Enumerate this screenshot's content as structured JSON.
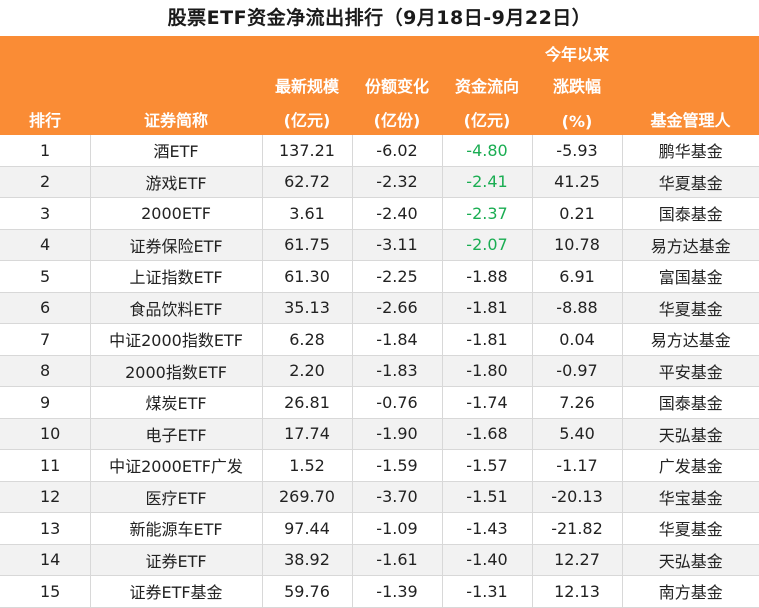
{
  "title": "股票ETF资金净流出排行（9月18日-9月22日）",
  "headers": {
    "rank": "排行",
    "name": "证券简称",
    "size_line1": "最新规模",
    "size_line2": "(亿元)",
    "share_line1": "份额变化",
    "share_line2": "(亿份)",
    "flow_line1": "资金流向",
    "flow_line2": "(亿元)",
    "ytd_line1": "今年以来",
    "ytd_line2": "涨跌幅",
    "ytd_line3": "(%)",
    "manager": "基金管理人"
  },
  "colors": {
    "header_bg": "#fa8c35",
    "header_text": "#ffffff",
    "negative_flow_highlight": "#1aad52",
    "stripe": "#f2f2f2"
  },
  "rows": [
    {
      "rank": "1",
      "name": "酒ETF",
      "size": "137.21",
      "share": "-6.02",
      "flow": "-4.80",
      "ytd": "-5.93",
      "manager": "鹏华基金",
      "flow_green": true
    },
    {
      "rank": "2",
      "name": "游戏ETF",
      "size": "62.72",
      "share": "-2.32",
      "flow": "-2.41",
      "ytd": "41.25",
      "manager": "华夏基金",
      "flow_green": true
    },
    {
      "rank": "3",
      "name": "2000ETF",
      "size": "3.61",
      "share": "-2.40",
      "flow": "-2.37",
      "ytd": "0.21",
      "manager": "国泰基金",
      "flow_green": true
    },
    {
      "rank": "4",
      "name": "证券保险ETF",
      "size": "61.75",
      "share": "-3.11",
      "flow": "-2.07",
      "ytd": "10.78",
      "manager": "易方达基金",
      "flow_green": true
    },
    {
      "rank": "5",
      "name": "上证指数ETF",
      "size": "61.30",
      "share": "-2.25",
      "flow": "-1.88",
      "ytd": "6.91",
      "manager": "富国基金",
      "flow_green": false
    },
    {
      "rank": "6",
      "name": "食品饮料ETF",
      "size": "35.13",
      "share": "-2.66",
      "flow": "-1.81",
      "ytd": "-8.88",
      "manager": "华夏基金",
      "flow_green": false
    },
    {
      "rank": "7",
      "name": "中证2000指数ETF",
      "size": "6.28",
      "share": "-1.84",
      "flow": "-1.81",
      "ytd": "0.04",
      "manager": "易方达基金",
      "flow_green": false
    },
    {
      "rank": "8",
      "name": "2000指数ETF",
      "size": "2.20",
      "share": "-1.83",
      "flow": "-1.80",
      "ytd": "-0.97",
      "manager": "平安基金",
      "flow_green": false
    },
    {
      "rank": "9",
      "name": "煤炭ETF",
      "size": "26.81",
      "share": "-0.76",
      "flow": "-1.74",
      "ytd": "7.26",
      "manager": "国泰基金",
      "flow_green": false
    },
    {
      "rank": "10",
      "name": "电子ETF",
      "size": "17.74",
      "share": "-1.90",
      "flow": "-1.68",
      "ytd": "5.40",
      "manager": "天弘基金",
      "flow_green": false
    },
    {
      "rank": "11",
      "name": "中证2000ETF广发",
      "size": "1.52",
      "share": "-1.59",
      "flow": "-1.57",
      "ytd": "-1.17",
      "manager": "广发基金",
      "flow_green": false
    },
    {
      "rank": "12",
      "name": "医疗ETF",
      "size": "269.70",
      "share": "-3.70",
      "flow": "-1.51",
      "ytd": "-20.13",
      "manager": "华宝基金",
      "flow_green": false
    },
    {
      "rank": "13",
      "name": "新能源车ETF",
      "size": "97.44",
      "share": "-1.09",
      "flow": "-1.43",
      "ytd": "-21.82",
      "manager": "华夏基金",
      "flow_green": false
    },
    {
      "rank": "14",
      "name": "证券ETF",
      "size": "38.92",
      "share": "-1.61",
      "flow": "-1.40",
      "ytd": "12.27",
      "manager": "天弘基金",
      "flow_green": false
    },
    {
      "rank": "15",
      "name": "证券ETF基金",
      "size": "59.76",
      "share": "-1.39",
      "flow": "-1.31",
      "ytd": "12.13",
      "manager": "南方基金",
      "flow_green": false
    }
  ]
}
